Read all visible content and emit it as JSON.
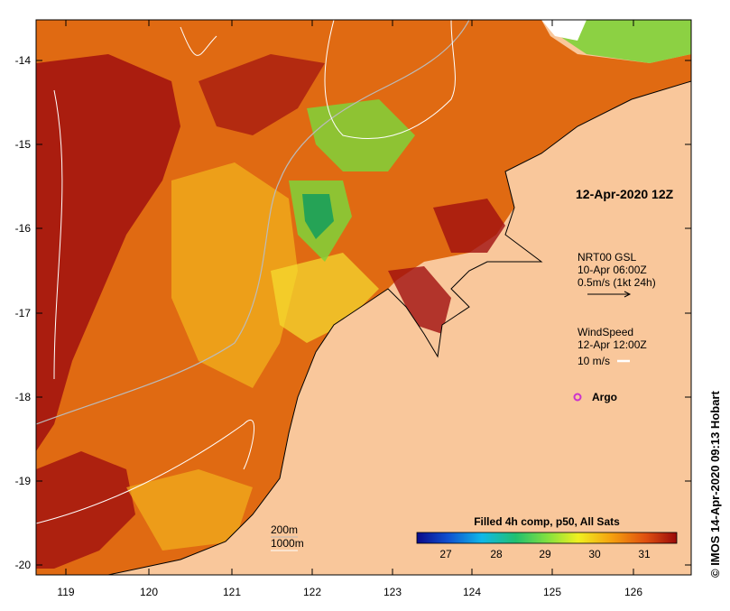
{
  "map": {
    "title": "12-Apr-2020 12Z",
    "credit": "© IMOS 14-Apr-2020 09:13 Hobart",
    "x_ticks": [
      "119",
      "120",
      "121",
      "122",
      "123",
      "124",
      "125",
      "126"
    ],
    "y_ticks": [
      "-14",
      "-15",
      "-16",
      "-17",
      "-18",
      "-19",
      "-20"
    ],
    "current_legend": {
      "line1": "NRT00 GSL",
      "line2": "10-Apr 06:00Z",
      "line3": "0.5m/s (1kt 24h)"
    },
    "wind_legend": {
      "line1": "WindSpeed",
      "line2": "12-Apr 12:00Z",
      "line3": "10 m/s"
    },
    "argo_label": "Argo",
    "isobaths": {
      "a": "200m",
      "b": "1000m"
    },
    "colorbar": {
      "title": "Filled 4h comp, p50, All Sats",
      "ticks": [
        "27",
        "28",
        "29",
        "30",
        "31"
      ]
    },
    "colors": {
      "land": "#f9c79b",
      "hot": "#a00f0f",
      "warm": "#e06a12",
      "mild": "#f2b21c",
      "cool": "#7fd23a",
      "cold": "#1aa05a",
      "argo": "#cc33cc"
    }
  }
}
